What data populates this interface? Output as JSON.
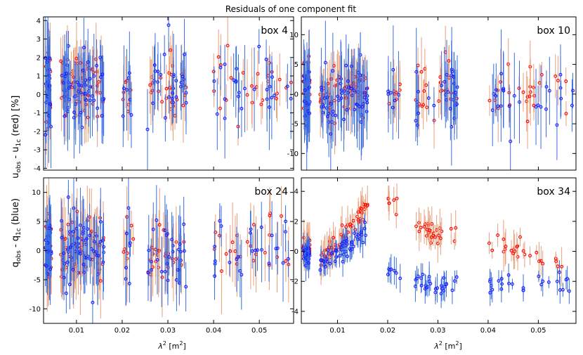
{
  "chart_data": {
    "type": "scatter",
    "title": "Residuals of one component fit",
    "ylabel_top": "u",
    "ylabel_top_sub1": "obs",
    "ylabel_top_mid": " - u",
    "ylabel_top_sub2": "1c",
    "ylabel_top_tail": "  (red)     [%]",
    "ylabel_bottom": "q",
    "ylabel_bottom_sub1": "obs",
    "ylabel_bottom_mid": " - q",
    "ylabel_bottom_sub2": "1c",
    "ylabel_bottom_tail": "  (blue)",
    "xlabel_lambda": "λ",
    "xlabel_sup": "2",
    "xlabel_unit": " [m",
    "xlabel_unit_sup": "2",
    "xlabel_close": "]",
    "xlim": [
      0.0028,
      0.0575
    ],
    "xticks": [
      0.01,
      0.02,
      0.03,
      0.04,
      0.05
    ],
    "xtick_labels": [
      "0.01",
      "0.02",
      "0.03",
      "0.04",
      "0.05"
    ],
    "colors": {
      "red_point": "#ff0000",
      "red_errorbar": "#e8a07a",
      "blue_point": "#1a1aff",
      "blue_errorbar": "#3a6ee0"
    },
    "panels": [
      {
        "name": "box 4",
        "label": "box 4",
        "ylim": [
          -4.1,
          4.2
        ],
        "yticks": [
          -4,
          -3,
          -2,
          -1,
          0,
          1,
          2,
          3,
          4
        ],
        "ytick_labels": [
          "-4",
          "-3",
          "-2",
          "-1",
          "0",
          "1",
          "2",
          "3",
          "4"
        ],
        "seed": 11,
        "red": {
          "offset": 0.4,
          "spread": 0.8,
          "err": 1.4,
          "trend": 0.0
        },
        "blue": {
          "offset": 0.3,
          "spread": 1.0,
          "err": 1.6,
          "trend": 0.0
        }
      },
      {
        "name": "box 10",
        "label": "box 10",
        "ylim": [
          -12.8,
          13.0
        ],
        "yticks": [
          -10,
          -5,
          0,
          5,
          10
        ],
        "ytick_labels": [
          "-10",
          "-5",
          "0",
          "5",
          "10"
        ],
        "seed": 23,
        "red": {
          "offset": 0.5,
          "spread": 2.0,
          "err": 4.0,
          "trend": 0.0
        },
        "blue": {
          "offset": -0.5,
          "spread": 2.6,
          "err": 5.0,
          "trend": 0.0
        }
      },
      {
        "name": "box 24",
        "label": "box 24",
        "ylim": [
          -12.5,
          12.5
        ],
        "yticks": [
          -10,
          -5,
          0,
          5,
          10
        ],
        "ytick_labels": [
          "-10",
          "-5",
          "0",
          "5",
          "10"
        ],
        "seed": 37,
        "red": {
          "offset": 0.0,
          "spread": 2.8,
          "err": 5.0,
          "trend": 0.0
        },
        "blue": {
          "offset": 0.0,
          "spread": 3.0,
          "err": 4.5,
          "trend": 0.0
        }
      },
      {
        "name": "box 34",
        "label": "box 34",
        "ylim": [
          -4.8,
          4.9
        ],
        "yticks": [
          -4,
          -2,
          0,
          2,
          4
        ],
        "ytick_labels": [
          "-4",
          "-2",
          "0",
          "2",
          "4"
        ],
        "seed": 53,
        "red": {
          "offset": 0.0,
          "spread": 0.35,
          "err": 0.9,
          "trend": 1.0
        },
        "blue": {
          "offset": 0.0,
          "spread": 0.35,
          "err": 0.7,
          "trend": -1.0
        }
      }
    ]
  }
}
